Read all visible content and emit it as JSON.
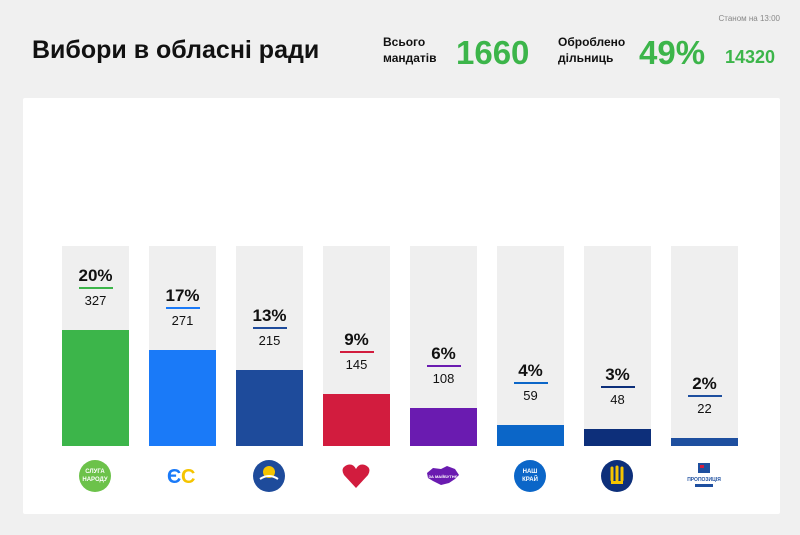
{
  "header": {
    "timestamp": "Станом на 13:00",
    "title": "Вибори в обласні ради",
    "mandates_label_1": "Всього",
    "mandates_label_2": "мандатів",
    "mandates_value": "1660",
    "processed_label_1": "Оброблено",
    "processed_label_2": "дільниць",
    "processed_percent": "49%",
    "processed_count": "14320"
  },
  "parties": [
    {
      "pct": "20%",
      "seats": "327",
      "color": "#3cb54a",
      "logo_icon": "sluha-narodu-logo",
      "logo_text": "СЛУГА НАРОДУ"
    },
    {
      "pct": "17%",
      "seats": "271",
      "color": "#1a7af8",
      "logo_icon": "es-logo",
      "logo_text": "ЄС"
    },
    {
      "pct": "13%",
      "seats": "215",
      "color": "#1e4b9b",
      "logo_icon": "opzzh-logo",
      "logo_text": ""
    },
    {
      "pct": "9%",
      "seats": "145",
      "color": "#d21c3e",
      "logo_icon": "heart-logo",
      "logo_text": ""
    },
    {
      "pct": "6%",
      "seats": "108",
      "color": "#6a1bb0",
      "logo_icon": "za-maibutnie-logo",
      "logo_text": "ЗА МАЙБУТНЄ"
    },
    {
      "pct": "4%",
      "seats": "59",
      "color": "#0b66c8",
      "logo_icon": "nash-krai-logo",
      "logo_text": "НАШ КРАЙ"
    },
    {
      "pct": "3%",
      "seats": "48",
      "color": "#0d2f7a",
      "logo_icon": "svoboda-logo",
      "logo_text": ""
    },
    {
      "pct": "2%",
      "seats": "22",
      "color": "#1e4f9f",
      "logo_icon": "propozytsiia-logo",
      "logo_text": "ПРОПОЗИЦІЯ"
    }
  ],
  "chart_data": {
    "type": "bar",
    "title": "Вибори в обласні ради",
    "categories": [
      "Слуга народу",
      "ЄС",
      "ОПЗЖ",
      "Батьківщина",
      "За майбутнє",
      "Наш край",
      "Свобода",
      "Пропозиція"
    ],
    "series": [
      {
        "values": [
          327,
          271,
          215,
          145,
          108,
          59,
          48,
          22
        ]
      }
    ],
    "percent_labels": [
      "20%",
      "17%",
      "13%",
      "9%",
      "6%",
      "4%",
      "3%",
      "2%"
    ],
    "ylim": [
      0,
      1660
    ],
    "grid": false,
    "legend": "none"
  }
}
